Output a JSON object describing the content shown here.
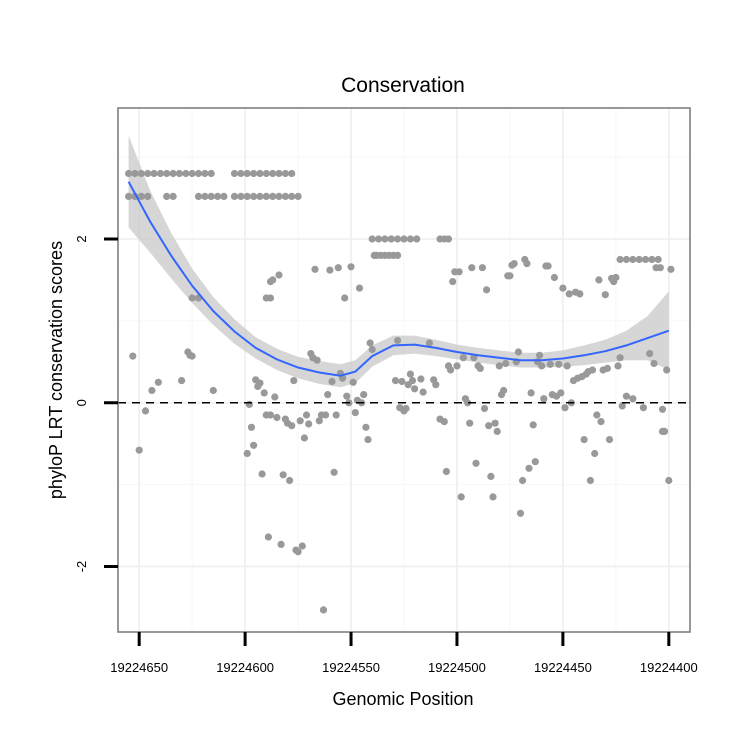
{
  "chart_data": {
    "type": "scatter",
    "title": "Conservation",
    "xlabel": "Genomic Position",
    "ylabel": "phyloP LRT conservation scores",
    "xlim": [
      19224660,
      19224390
    ],
    "ylim": [
      -2.8,
      3.6
    ],
    "x_reversed": true,
    "x_ticks": [
      19224650,
      19224600,
      19224550,
      19224500,
      19224450,
      19224400
    ],
    "x_tick_labels": [
      "19224650",
      "19224600",
      "19224550",
      "19224500",
      "19224450",
      "19224400"
    ],
    "y_ticks": [
      -2,
      0,
      2
    ],
    "y_tick_labels": [
      "-2",
      "0",
      "2"
    ],
    "x_minor_ticks": [
      19224625,
      19224575,
      19224525,
      19224475,
      19224425
    ],
    "y_minor_ticks": [
      -1,
      1,
      3
    ],
    "reference_line": {
      "y": 0,
      "style": "dashed",
      "color": "#000000"
    },
    "point_color": "#999999",
    "smooth_color": "#3366FF",
    "ribbon_color": "#c8c8c8",
    "grid": true,
    "points": [
      [
        19224655,
        2.8
      ],
      [
        19224652,
        2.8
      ],
      [
        19224649,
        2.8
      ],
      [
        19224646,
        2.8
      ],
      [
        19224643,
        2.8
      ],
      [
        19224640,
        2.8
      ],
      [
        19224637,
        2.8
      ],
      [
        19224634,
        2.8
      ],
      [
        19224631,
        2.8
      ],
      [
        19224628,
        2.8
      ],
      [
        19224625,
        2.8
      ],
      [
        19224622,
        2.8
      ],
      [
        19224619,
        2.8
      ],
      [
        19224616,
        2.8
      ],
      [
        19224605,
        2.8
      ],
      [
        19224602,
        2.8
      ],
      [
        19224599,
        2.8
      ],
      [
        19224596,
        2.8
      ],
      [
        19224593,
        2.8
      ],
      [
        19224590,
        2.8
      ],
      [
        19224587,
        2.8
      ],
      [
        19224584,
        2.8
      ],
      [
        19224581,
        2.8
      ],
      [
        19224578,
        2.8
      ],
      [
        19224655,
        2.52
      ],
      [
        19224652,
        2.52
      ],
      [
        19224649,
        2.52
      ],
      [
        19224646,
        2.52
      ],
      [
        19224637,
        2.52
      ],
      [
        19224634,
        2.52
      ],
      [
        19224622,
        2.52
      ],
      [
        19224619,
        2.52
      ],
      [
        19224616,
        2.52
      ],
      [
        19224613,
        2.52
      ],
      [
        19224610,
        2.52
      ],
      [
        19224605,
        2.52
      ],
      [
        19224602,
        2.52
      ],
      [
        19224599,
        2.52
      ],
      [
        19224596,
        2.52
      ],
      [
        19224593,
        2.52
      ],
      [
        19224590,
        2.52
      ],
      [
        19224587,
        2.52
      ],
      [
        19224584,
        2.52
      ],
      [
        19224581,
        2.52
      ],
      [
        19224578,
        2.52
      ],
      [
        19224575,
        2.52
      ],
      [
        19224625,
        1.28
      ],
      [
        19224622,
        1.28
      ],
      [
        19224590,
        1.28
      ],
      [
        19224588,
        1.48
      ],
      [
        19224588,
        1.28
      ],
      [
        19224653,
        0.57
      ],
      [
        19224650,
        -0.58
      ],
      [
        19224647,
        -0.1
      ],
      [
        19224644,
        0.15
      ],
      [
        19224641,
        0.25
      ],
      [
        19224630,
        0.27
      ],
      [
        19224627,
        0.62
      ],
      [
        19224626,
        0.58
      ],
      [
        19224625,
        0.57
      ],
      [
        19224615,
        0.15
      ],
      [
        19224599,
        -0.62
      ],
      [
        19224598,
        -0.02
      ],
      [
        19224597,
        -0.3
      ],
      [
        19224596,
        -0.52
      ],
      [
        19224595,
        0.28
      ],
      [
        19224594,
        0.2
      ],
      [
        19224593,
        0.24
      ],
      [
        19224592,
        -0.87
      ],
      [
        19224591,
        0.12
      ],
      [
        19224590,
        -0.15
      ],
      [
        19224589,
        -1.64
      ],
      [
        19224588,
        -0.15
      ],
      [
        19224587,
        1.5
      ],
      [
        19224586,
        0.07
      ],
      [
        19224585,
        -0.18
      ],
      [
        19224584,
        1.56
      ],
      [
        19224583,
        -1.73
      ],
      [
        19224582,
        -0.88
      ],
      [
        19224581,
        -0.2
      ],
      [
        19224580,
        -0.25
      ],
      [
        19224579,
        -0.95
      ],
      [
        19224578,
        -0.28
      ],
      [
        19224577,
        0.27
      ],
      [
        19224576,
        -1.8
      ],
      [
        19224575,
        -1.82
      ],
      [
        19224574,
        -0.22
      ],
      [
        19224573,
        -1.75
      ],
      [
        19224572,
        -0.43
      ],
      [
        19224571,
        -0.15
      ],
      [
        19224570,
        -0.26
      ],
      [
        19224569,
        0.6
      ],
      [
        19224568,
        0.55
      ],
      [
        19224567,
        1.63
      ],
      [
        19224566,
        0.52
      ],
      [
        19224565,
        -0.22
      ],
      [
        19224564,
        -0.15
      ],
      [
        19224563,
        -2.53
      ],
      [
        19224562,
        -0.15
      ],
      [
        19224561,
        0.1
      ],
      [
        19224560,
        1.62
      ],
      [
        19224559,
        0.26
      ],
      [
        19224558,
        -0.85
      ],
      [
        19224557,
        -0.15
      ],
      [
        19224556,
        1.65
      ],
      [
        19224555,
        0.36
      ],
      [
        19224554,
        0.3
      ],
      [
        19224553,
        1.28
      ],
      [
        19224552,
        0.08
      ],
      [
        19224551,
        0.0
      ],
      [
        19224550,
        1.66
      ],
      [
        19224549,
        0.25
      ],
      [
        19224548,
        -0.12
      ],
      [
        19224547,
        0.03
      ],
      [
        19224546,
        1.4
      ],
      [
        19224545,
        0.0
      ],
      [
        19224544,
        0.1
      ],
      [
        19224543,
        -0.3
      ],
      [
        19224542,
        -0.45
      ],
      [
        19224541,
        0.73
      ],
      [
        19224540,
        0.65
      ],
      [
        19224539,
        1.8
      ],
      [
        19224538,
        1.8
      ],
      [
        19224536,
        1.8
      ],
      [
        19224534,
        1.8
      ],
      [
        19224532,
        1.8
      ],
      [
        19224530,
        1.8
      ],
      [
        19224528,
        1.8
      ],
      [
        19224540,
        2.0
      ],
      [
        19224537,
        2.0
      ],
      [
        19224534,
        2.0
      ],
      [
        19224531,
        2.0
      ],
      [
        19224528,
        2.0
      ],
      [
        19224525,
        2.0
      ],
      [
        19224522,
        2.0
      ],
      [
        19224519,
        2.0
      ],
      [
        19224508,
        2.0
      ],
      [
        19224506,
        2.0
      ],
      [
        19224504,
        2.0
      ],
      [
        19224529,
        0.27
      ],
      [
        19224528,
        0.76
      ],
      [
        19224527,
        -0.06
      ],
      [
        19224526,
        0.26
      ],
      [
        19224525,
        -0.1
      ],
      [
        19224524,
        -0.07
      ],
      [
        19224523,
        0.22
      ],
      [
        19224522,
        0.35
      ],
      [
        19224521,
        0.27
      ],
      [
        19224520,
        0.17
      ],
      [
        19224517,
        0.29
      ],
      [
        19224516,
        0.13
      ],
      [
        19224513,
        0.73
      ],
      [
        19224511,
        0.28
      ],
      [
        19224510,
        0.22
      ],
      [
        19224508,
        -0.2
      ],
      [
        19224506,
        -0.23
      ],
      [
        19224505,
        -0.84
      ],
      [
        19224504,
        0.45
      ],
      [
        19224503,
        0.4
      ],
      [
        19224502,
        1.48
      ],
      [
        19224501,
        1.6
      ],
      [
        19224500,
        0.45
      ],
      [
        19224499,
        1.6
      ],
      [
        19224498,
        -1.15
      ],
      [
        19224497,
        0.55
      ],
      [
        19224496,
        0.05
      ],
      [
        19224495,
        0.0
      ],
      [
        19224494,
        -0.25
      ],
      [
        19224493,
        1.65
      ],
      [
        19224492,
        0.55
      ],
      [
        19224491,
        -0.74
      ],
      [
        19224490,
        0.45
      ],
      [
        19224489,
        0.42
      ],
      [
        19224488,
        1.65
      ],
      [
        19224487,
        -0.07
      ],
      [
        19224486,
        1.38
      ],
      [
        19224485,
        -0.28
      ],
      [
        19224484,
        -0.9
      ],
      [
        19224483,
        -1.15
      ],
      [
        19224482,
        -0.25
      ],
      [
        19224481,
        -0.35
      ],
      [
        19224480,
        0.45
      ],
      [
        19224479,
        0.1
      ],
      [
        19224478,
        0.15
      ],
      [
        19224477,
        0.48
      ],
      [
        19224476,
        1.55
      ],
      [
        19224475,
        1.55
      ],
      [
        19224474,
        1.68
      ],
      [
        19224473,
        1.7
      ],
      [
        19224472,
        0.5
      ],
      [
        19224471,
        0.62
      ],
      [
        19224470,
        -1.35
      ],
      [
        19224469,
        -0.95
      ],
      [
        19224468,
        1.75
      ],
      [
        19224467,
        1.7
      ],
      [
        19224466,
        -0.8
      ],
      [
        19224465,
        0.12
      ],
      [
        19224464,
        -0.27
      ],
      [
        19224463,
        -0.72
      ],
      [
        19224462,
        0.5
      ],
      [
        19224461,
        0.58
      ],
      [
        19224460,
        0.45
      ],
      [
        19224459,
        0.05
      ],
      [
        19224458,
        1.67
      ],
      [
        19224457,
        1.67
      ],
      [
        19224456,
        0.47
      ],
      [
        19224455,
        0.1
      ],
      [
        19224454,
        1.53
      ],
      [
        19224453,
        0.08
      ],
      [
        19224452,
        0.47
      ],
      [
        19224451,
        0.12
      ],
      [
        19224450,
        1.4
      ],
      [
        19224449,
        -0.06
      ],
      [
        19224448,
        0.45
      ],
      [
        19224447,
        1.33
      ],
      [
        19224446,
        0.0
      ],
      [
        19224445,
        0.27
      ],
      [
        19224444,
        1.35
      ],
      [
        19224443,
        0.3
      ],
      [
        19224442,
        1.33
      ],
      [
        19224441,
        0.32
      ],
      [
        19224440,
        -0.45
      ],
      [
        19224439,
        0.35
      ],
      [
        19224438,
        0.38
      ],
      [
        19224437,
        -0.95
      ],
      [
        19224436,
        0.4
      ],
      [
        19224435,
        -0.62
      ],
      [
        19224434,
        -0.15
      ],
      [
        19224433,
        1.5
      ],
      [
        19224432,
        -0.23
      ],
      [
        19224431,
        0.4
      ],
      [
        19224430,
        1.32
      ],
      [
        19224429,
        0.42
      ],
      [
        19224428,
        -0.45
      ],
      [
        19224427,
        1.52
      ],
      [
        19224426,
        1.48
      ],
      [
        19224425,
        1.53
      ],
      [
        19224424,
        0.45
      ],
      [
        19224423,
        0.55
      ],
      [
        19224423,
        1.75
      ],
      [
        19224420,
        1.75
      ],
      [
        19224417,
        1.75
      ],
      [
        19224414,
        1.75
      ],
      [
        19224411,
        1.75
      ],
      [
        19224408,
        1.75
      ],
      [
        19224405,
        1.75
      ],
      [
        19224422,
        -0.04
      ],
      [
        19224420,
        0.08
      ],
      [
        19224417,
        0.05
      ],
      [
        19224412,
        -0.06
      ],
      [
        19224409,
        0.6
      ],
      [
        19224407,
        0.48
      ],
      [
        19224403,
        -0.08
      ],
      [
        19224406,
        1.65
      ],
      [
        19224404,
        1.65
      ],
      [
        19224403,
        -0.35
      ],
      [
        19224402,
        -0.35
      ],
      [
        19224401,
        0.4
      ],
      [
        19224400,
        -0.95
      ],
      [
        19224399,
        1.63
      ]
    ],
    "smooth": [
      {
        "x": 19224655,
        "y": 2.7,
        "lo": 2.14,
        "hi": 3.26
      },
      {
        "x": 19224645,
        "y": 2.22,
        "lo": 1.84,
        "hi": 2.6
      },
      {
        "x": 19224635,
        "y": 1.8,
        "lo": 1.52,
        "hi": 2.08
      },
      {
        "x": 19224625,
        "y": 1.43,
        "lo": 1.22,
        "hi": 1.64
      },
      {
        "x": 19224615,
        "y": 1.12,
        "lo": 0.95,
        "hi": 1.29
      },
      {
        "x": 19224605,
        "y": 0.87,
        "lo": 0.72,
        "hi": 1.02
      },
      {
        "x": 19224595,
        "y": 0.67,
        "lo": 0.54,
        "hi": 0.8
      },
      {
        "x": 19224585,
        "y": 0.53,
        "lo": 0.4,
        "hi": 0.66
      },
      {
        "x": 19224575,
        "y": 0.43,
        "lo": 0.3,
        "hi": 0.56
      },
      {
        "x": 19224565,
        "y": 0.37,
        "lo": 0.23,
        "hi": 0.51
      },
      {
        "x": 19224555,
        "y": 0.33,
        "lo": 0.19,
        "hi": 0.47
      },
      {
        "x": 19224548,
        "y": 0.38,
        "lo": 0.24,
        "hi": 0.52
      },
      {
        "x": 19224540,
        "y": 0.57,
        "lo": 0.44,
        "hi": 0.7
      },
      {
        "x": 19224530,
        "y": 0.7,
        "lo": 0.58,
        "hi": 0.82
      },
      {
        "x": 19224520,
        "y": 0.71,
        "lo": 0.6,
        "hi": 0.82
      },
      {
        "x": 19224510,
        "y": 0.67,
        "lo": 0.57,
        "hi": 0.77
      },
      {
        "x": 19224500,
        "y": 0.62,
        "lo": 0.53,
        "hi": 0.71
      },
      {
        "x": 19224490,
        "y": 0.58,
        "lo": 0.49,
        "hi": 0.67
      },
      {
        "x": 19224480,
        "y": 0.55,
        "lo": 0.46,
        "hi": 0.64
      },
      {
        "x": 19224470,
        "y": 0.52,
        "lo": 0.43,
        "hi": 0.61
      },
      {
        "x": 19224460,
        "y": 0.52,
        "lo": 0.43,
        "hi": 0.61
      },
      {
        "x": 19224450,
        "y": 0.54,
        "lo": 0.44,
        "hi": 0.64
      },
      {
        "x": 19224440,
        "y": 0.58,
        "lo": 0.46,
        "hi": 0.7
      },
      {
        "x": 19224430,
        "y": 0.63,
        "lo": 0.49,
        "hi": 0.77
      },
      {
        "x": 19224420,
        "y": 0.7,
        "lo": 0.52,
        "hi": 0.88
      },
      {
        "x": 19224410,
        "y": 0.79,
        "lo": 0.52,
        "hi": 1.06
      },
      {
        "x": 19224400,
        "y": 0.88,
        "lo": 0.4,
        "hi": 1.36
      }
    ]
  }
}
